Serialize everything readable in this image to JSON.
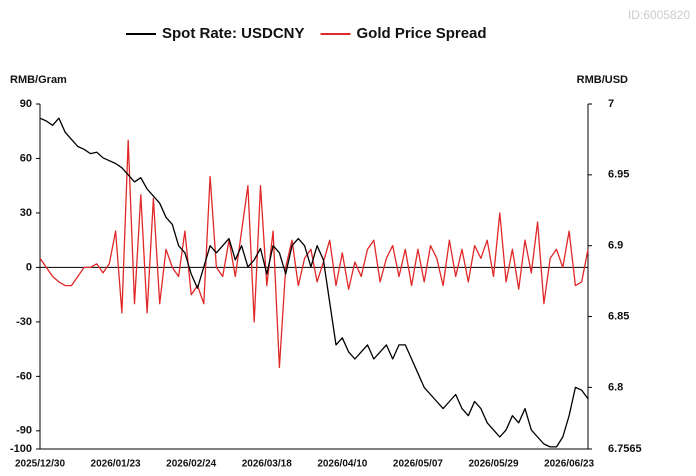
{
  "watermark": "ID:6005820",
  "chart_data": {
    "type": "line",
    "y_label": "RMB/Gram",
    "y2_label": "RMB/USD",
    "categories": [
      "2025/12/30",
      null,
      null,
      null,
      null,
      null,
      null,
      null,
      null,
      null,
      null,
      null,
      "2026/01/23",
      null,
      null,
      null,
      null,
      null,
      null,
      null,
      null,
      null,
      null,
      null,
      "2026/02/24",
      null,
      null,
      null,
      null,
      null,
      null,
      null,
      null,
      null,
      null,
      null,
      "2026/03/18",
      null,
      null,
      null,
      null,
      null,
      null,
      null,
      null,
      null,
      null,
      null,
      "2026/04/10",
      null,
      null,
      null,
      null,
      null,
      null,
      null,
      null,
      null,
      null,
      null,
      "2026/05/07",
      null,
      null,
      null,
      null,
      null,
      null,
      null,
      null,
      null,
      null,
      null,
      "2026/05/29",
      null,
      null,
      null,
      null,
      null,
      null,
      null,
      null,
      null,
      null,
      null,
      "2026/06/23",
      null,
      null,
      null
    ],
    "series": [
      {
        "name": "Spot Rate: USDCNY",
        "color": "#000000",
        "axis": "y2",
        "values": [
          6.99,
          6.988,
          6.985,
          6.99,
          6.98,
          6.975,
          6.97,
          6.968,
          6.965,
          6.966,
          6.962,
          6.96,
          6.958,
          6.955,
          6.95,
          6.945,
          6.948,
          6.94,
          6.935,
          6.93,
          6.92,
          6.915,
          6.9,
          6.895,
          6.88,
          6.87,
          6.885,
          6.9,
          6.895,
          6.9,
          6.905,
          6.89,
          6.9,
          6.885,
          6.89,
          6.898,
          6.88,
          6.9,
          6.895,
          6.88,
          6.9,
          6.905,
          6.9,
          6.885,
          6.9,
          6.89,
          6.86,
          6.83,
          6.835,
          6.825,
          6.82,
          6.825,
          6.83,
          6.82,
          6.825,
          6.83,
          6.82,
          6.83,
          6.83,
          6.82,
          6.81,
          6.8,
          6.795,
          6.79,
          6.785,
          6.79,
          6.795,
          6.785,
          6.78,
          6.79,
          6.785,
          6.775,
          6.77,
          6.765,
          6.77,
          6.78,
          6.775,
          6.785,
          6.77,
          6.765,
          6.76,
          6.758,
          6.758,
          6.765,
          6.78,
          6.8,
          6.798,
          6.792
        ]
      },
      {
        "name": "Gold Price Spread",
        "color": "#e02828",
        "values": [
          5,
          0,
          -5,
          -8,
          -10,
          -10,
          -5,
          0,
          0,
          2,
          -3,
          2,
          20,
          -25,
          70,
          -20,
          40,
          -25,
          38,
          -20,
          10,
          0,
          -5,
          20,
          -15,
          -10,
          -20,
          50,
          0,
          -5,
          15,
          -5,
          20,
          45,
          -30,
          45,
          -10,
          20,
          -55,
          0,
          15,
          -10,
          5,
          10,
          -8,
          3,
          15,
          -10,
          8,
          -12,
          3,
          -5,
          10,
          15,
          -8,
          5,
          12,
          -5,
          10,
          -10,
          10,
          -8,
          12,
          5,
          -10,
          15,
          -5,
          10,
          -8,
          12,
          5,
          15,
          -5,
          30,
          -8,
          10,
          -12,
          15,
          -3,
          25,
          -20,
          5,
          10,
          0,
          20,
          -10,
          -8,
          10
        ]
      }
    ],
    "ylim": [
      -100,
      90
    ],
    "yticks": [
      90,
      60,
      30,
      0,
      -30,
      -60,
      -90,
      -100
    ],
    "y2lim": [
      6.7565,
      7
    ],
    "y2ticks": [
      7,
      6.95,
      6.9,
      6.85,
      6.8,
      6.7565
    ],
    "legend": "top"
  }
}
